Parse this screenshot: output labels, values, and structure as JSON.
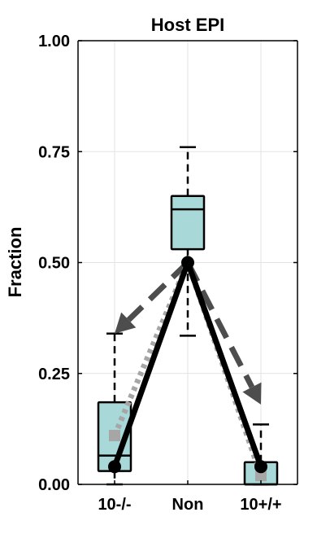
{
  "chart_data": {
    "type": "box",
    "title": "Host EPI",
    "ylabel": "Fraction",
    "xlabel": "",
    "ylim": [
      0,
      1
    ],
    "yticks": [
      "0.00",
      "0.25",
      "0.50",
      "0.75",
      "1.00"
    ],
    "ytick_values": [
      0,
      0.25,
      0.5,
      0.75,
      1.0
    ],
    "categories": [
      "10-/-",
      "Non",
      "10+/+"
    ],
    "grid": true,
    "boxes": [
      {
        "category": "10-/-",
        "whisker_low": 0.0,
        "q1": 0.03,
        "median": 0.065,
        "q3": 0.185,
        "whisker_high": 0.34
      },
      {
        "category": "Non",
        "whisker_low": 0.335,
        "q1": 0.53,
        "median": 0.62,
        "q3": 0.65,
        "whisker_high": 0.76
      },
      {
        "category": "10+/+",
        "whisker_low": 0.0,
        "q1": 0.0,
        "median": 0.0,
        "q3": 0.05,
        "whisker_high": 0.135
      }
    ],
    "series": [
      {
        "style": "solid-black-with-markers",
        "values": [
          0.04,
          0.5,
          0.04
        ]
      },
      {
        "style": "dotted-gray-with-square-markers",
        "values": [
          0.11,
          0.5,
          0.02
        ]
      },
      {
        "style": "dashed-dark-gray-arrows",
        "values": [
          0.34,
          0.5,
          0.18
        ]
      }
    ],
    "colors": {
      "box_fill": "#a8d8d8",
      "solid_line": "#000000",
      "dotted_line": "#a6a6a6",
      "dashed_line": "#4d4d4d",
      "grid": "#e3e3e3"
    }
  }
}
